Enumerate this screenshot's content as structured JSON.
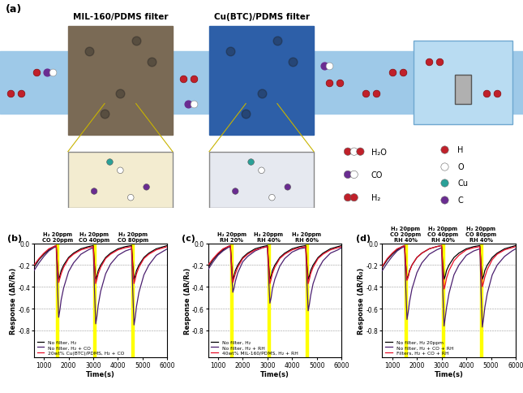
{
  "diagram": {
    "panel": "(a)",
    "filters": [
      "MIL-160/PDMS filter",
      "Cu(BTC)/PDMS filter"
    ],
    "legend": {
      "molecules": [
        "H₂O",
        "CO",
        "H₂"
      ],
      "atoms": [
        "H",
        "O",
        "Cu",
        "C"
      ]
    }
  },
  "chart_data": [
    {
      "type": "line",
      "panel": "(b)",
      "x_label": "Time(s)",
      "y_label": "Response (ΔR/R₀)",
      "xlim": [
        600,
        6000
      ],
      "xticks": [
        1000,
        2000,
        3000,
        4000,
        5000,
        6000
      ],
      "ylim": [
        -1.05,
        0.0
      ],
      "yticks": [
        {
          "value": 0,
          "label": "0.0"
        },
        -0.2,
        -0.4,
        -0.6,
        -0.8
      ],
      "grid": true,
      "legend": "lower left",
      "highlight_spans": [
        {
          "start": 1500,
          "end": 1600,
          "label": "H₂ 20ppm\nCO 20ppm"
        },
        {
          "start": 3000,
          "end": 3100,
          "label": "H₂ 20ppm\nCO 40ppm"
        },
        {
          "start": 4550,
          "end": 4650,
          "label": "H₂ 20ppm\nCO 80ppm"
        }
      ],
      "x": [
        600,
        800,
        1000,
        1200,
        1400,
        1500,
        1550,
        1600,
        1650,
        1700,
        1800,
        2000,
        2200,
        2500,
        2800,
        3000,
        3050,
        3100,
        3150,
        3200,
        3300,
        3500,
        3700,
        4000,
        4300,
        4550,
        4600,
        4650,
        4700,
        4750,
        4850,
        5050,
        5250,
        5550,
        5850,
        6000
      ],
      "series": [
        {
          "name": "No filter, H₂",
          "color": "#000000",
          "values": [
            -0.22,
            -0.15,
            -0.1,
            -0.06,
            -0.03,
            -0.02,
            -0.19,
            -0.33,
            -0.3,
            -0.25,
            -0.2,
            -0.13,
            -0.09,
            -0.05,
            -0.03,
            -0.02,
            -0.19,
            -0.33,
            -0.3,
            -0.25,
            -0.2,
            -0.13,
            -0.09,
            -0.05,
            -0.03,
            -0.02,
            -0.19,
            -0.33,
            -0.3,
            -0.25,
            -0.2,
            -0.13,
            -0.09,
            -0.05,
            -0.03,
            -0.02
          ]
        },
        {
          "name": "No filter, H₂ + CO",
          "color": "#4b1f6f",
          "values": [
            -0.25,
            -0.18,
            -0.12,
            -0.07,
            -0.04,
            -0.03,
            -0.4,
            -0.68,
            -0.61,
            -0.52,
            -0.41,
            -0.26,
            -0.18,
            -0.1,
            -0.06,
            -0.04,
            -0.43,
            -0.74,
            -0.67,
            -0.57,
            -0.44,
            -0.28,
            -0.19,
            -0.11,
            -0.07,
            -0.05,
            -0.44,
            -0.75,
            -0.68,
            -0.58,
            -0.45,
            -0.29,
            -0.2,
            -0.11,
            -0.07,
            -0.05
          ]
        },
        {
          "name": "20wt% Cu(BTC)/PDMS, H₂ + CO",
          "color": "#e8102a",
          "values": [
            -0.2,
            -0.14,
            -0.09,
            -0.05,
            -0.03,
            -0.02,
            -0.21,
            -0.36,
            -0.32,
            -0.28,
            -0.22,
            -0.14,
            -0.1,
            -0.06,
            -0.04,
            -0.03,
            -0.22,
            -0.37,
            -0.33,
            -0.28,
            -0.22,
            -0.14,
            -0.1,
            -0.06,
            -0.04,
            -0.03,
            -0.22,
            -0.37,
            -0.33,
            -0.28,
            -0.22,
            -0.14,
            -0.1,
            -0.06,
            -0.04,
            -0.03
          ]
        }
      ]
    },
    {
      "type": "line",
      "panel": "(c)",
      "x_label": "Time(s)",
      "y_label": "Response (ΔR/R₀)",
      "xlim": [
        600,
        6000
      ],
      "xticks": [
        1000,
        2000,
        3000,
        4000,
        5000,
        6000
      ],
      "ylim": [
        -1.05,
        0.0
      ],
      "yticks": [
        {
          "value": 0,
          "label": "0.0"
        },
        -0.2,
        -0.4,
        -0.6,
        -0.8
      ],
      "grid": true,
      "legend": "lower left",
      "highlight_spans": [
        {
          "start": 1500,
          "end": 1600,
          "label": "H₂ 20ppm\nRH 20%"
        },
        {
          "start": 3000,
          "end": 3100,
          "label": "H₂ 20ppm\nRH 40%"
        },
        {
          "start": 4550,
          "end": 4650,
          "label": "H₂ 20ppm\nRH 60%"
        }
      ],
      "x": [
        600,
        800,
        1000,
        1200,
        1400,
        1500,
        1550,
        1600,
        1650,
        1700,
        1800,
        2000,
        2200,
        2500,
        2800,
        3000,
        3050,
        3100,
        3150,
        3200,
        3300,
        3500,
        3700,
        4000,
        4300,
        4550,
        4600,
        4650,
        4700,
        4750,
        4850,
        5050,
        5250,
        5550,
        5850,
        6000
      ],
      "series": [
        {
          "name": "No filter, H₂",
          "color": "#000000",
          "values": [
            -0.22,
            -0.15,
            -0.1,
            -0.06,
            -0.03,
            -0.02,
            -0.19,
            -0.33,
            -0.3,
            -0.25,
            -0.2,
            -0.13,
            -0.09,
            -0.05,
            -0.03,
            -0.02,
            -0.19,
            -0.33,
            -0.3,
            -0.25,
            -0.2,
            -0.13,
            -0.09,
            -0.05,
            -0.03,
            -0.02,
            -0.19,
            -0.33,
            -0.3,
            -0.25,
            -0.2,
            -0.13,
            -0.09,
            -0.05,
            -0.03,
            -0.02
          ]
        },
        {
          "name": "No filter, H₂ + RH",
          "color": "#4b1f6f",
          "values": [
            -0.24,
            -0.17,
            -0.11,
            -0.07,
            -0.04,
            -0.03,
            -0.27,
            -0.45,
            -0.41,
            -0.35,
            -0.27,
            -0.17,
            -0.12,
            -0.07,
            -0.04,
            -0.03,
            -0.32,
            -0.55,
            -0.5,
            -0.42,
            -0.33,
            -0.21,
            -0.14,
            -0.08,
            -0.05,
            -0.04,
            -0.36,
            -0.62,
            -0.56,
            -0.48,
            -0.37,
            -0.24,
            -0.16,
            -0.09,
            -0.06,
            -0.04
          ]
        },
        {
          "name": "40wt% MIL-160/PDMS, H₂ + RH",
          "color": "#e8102a",
          "values": [
            -0.2,
            -0.14,
            -0.09,
            -0.05,
            -0.03,
            -0.02,
            -0.21,
            -0.36,
            -0.32,
            -0.28,
            -0.22,
            -0.14,
            -0.1,
            -0.06,
            -0.04,
            -0.03,
            -0.22,
            -0.37,
            -0.33,
            -0.28,
            -0.22,
            -0.14,
            -0.1,
            -0.06,
            -0.04,
            -0.03,
            -0.22,
            -0.37,
            -0.33,
            -0.28,
            -0.22,
            -0.14,
            -0.1,
            -0.06,
            -0.04,
            -0.03
          ]
        }
      ]
    },
    {
      "type": "line",
      "panel": "(d)",
      "x_label": "Time(s)",
      "y_label": "Response (ΔR/R₀)",
      "xlim": [
        600,
        6000
      ],
      "xticks": [
        1000,
        2000,
        3000,
        4000,
        5000,
        6000
      ],
      "ylim": [
        -1.05,
        0.0
      ],
      "yticks": [
        {
          "value": 0,
          "label": "0.0"
        },
        -0.2,
        -0.4,
        -0.6,
        -0.8
      ],
      "grid": true,
      "legend": "lower left",
      "highlight_spans": [
        {
          "start": 1500,
          "end": 1600,
          "label": "H₂ 20ppm\nCO 20ppm\nRH 40%"
        },
        {
          "start": 3000,
          "end": 3100,
          "label": "H₂ 20ppm\nCO 40ppm\nRH 40%"
        },
        {
          "start": 4550,
          "end": 4650,
          "label": "H₂ 20ppm\nCO 80ppm\nRH 40%"
        }
      ],
      "x": [
        600,
        800,
        1000,
        1200,
        1400,
        1500,
        1550,
        1600,
        1650,
        1700,
        1800,
        2000,
        2200,
        2500,
        2800,
        3000,
        3050,
        3100,
        3150,
        3200,
        3300,
        3500,
        3700,
        4000,
        4300,
        4550,
        4600,
        4650,
        4700,
        4750,
        4850,
        5050,
        5250,
        5550,
        5850,
        6000
      ],
      "series": [
        {
          "name": "No filter, H₂ 20ppm",
          "color": "#000000",
          "values": [
            -0.22,
            -0.15,
            -0.1,
            -0.06,
            -0.03,
            -0.02,
            -0.19,
            -0.33,
            -0.3,
            -0.25,
            -0.2,
            -0.13,
            -0.09,
            -0.05,
            -0.03,
            -0.02,
            -0.19,
            -0.33,
            -0.3,
            -0.25,
            -0.2,
            -0.13,
            -0.09,
            -0.05,
            -0.03,
            -0.02,
            -0.19,
            -0.33,
            -0.3,
            -0.25,
            -0.2,
            -0.13,
            -0.09,
            -0.05,
            -0.03,
            -0.02
          ]
        },
        {
          "name": "No filter, H₂ + CO + RH",
          "color": "#4b1f6f",
          "values": [
            -0.25,
            -0.18,
            -0.12,
            -0.07,
            -0.04,
            -0.03,
            -0.41,
            -0.7,
            -0.63,
            -0.54,
            -0.42,
            -0.27,
            -0.18,
            -0.1,
            -0.06,
            -0.04,
            -0.44,
            -0.76,
            -0.68,
            -0.59,
            -0.46,
            -0.29,
            -0.2,
            -0.11,
            -0.07,
            -0.05,
            -0.45,
            -0.77,
            -0.69,
            -0.59,
            -0.46,
            -0.29,
            -0.2,
            -0.12,
            -0.07,
            -0.05
          ]
        },
        {
          "name": "Filters, H₂ + CO + RH",
          "color": "#e8102a",
          "values": [
            -0.21,
            -0.14,
            -0.09,
            -0.05,
            -0.03,
            -0.02,
            -0.2,
            -0.34,
            -0.31,
            -0.26,
            -0.2,
            -0.13,
            -0.09,
            -0.05,
            -0.03,
            -0.02,
            -0.25,
            -0.42,
            -0.38,
            -0.32,
            -0.25,
            -0.16,
            -0.11,
            -0.06,
            -0.04,
            -0.03,
            -0.23,
            -0.4,
            -0.36,
            -0.31,
            -0.24,
            -0.15,
            -0.1,
            -0.06,
            -0.04,
            -0.03
          ]
        }
      ]
    }
  ]
}
